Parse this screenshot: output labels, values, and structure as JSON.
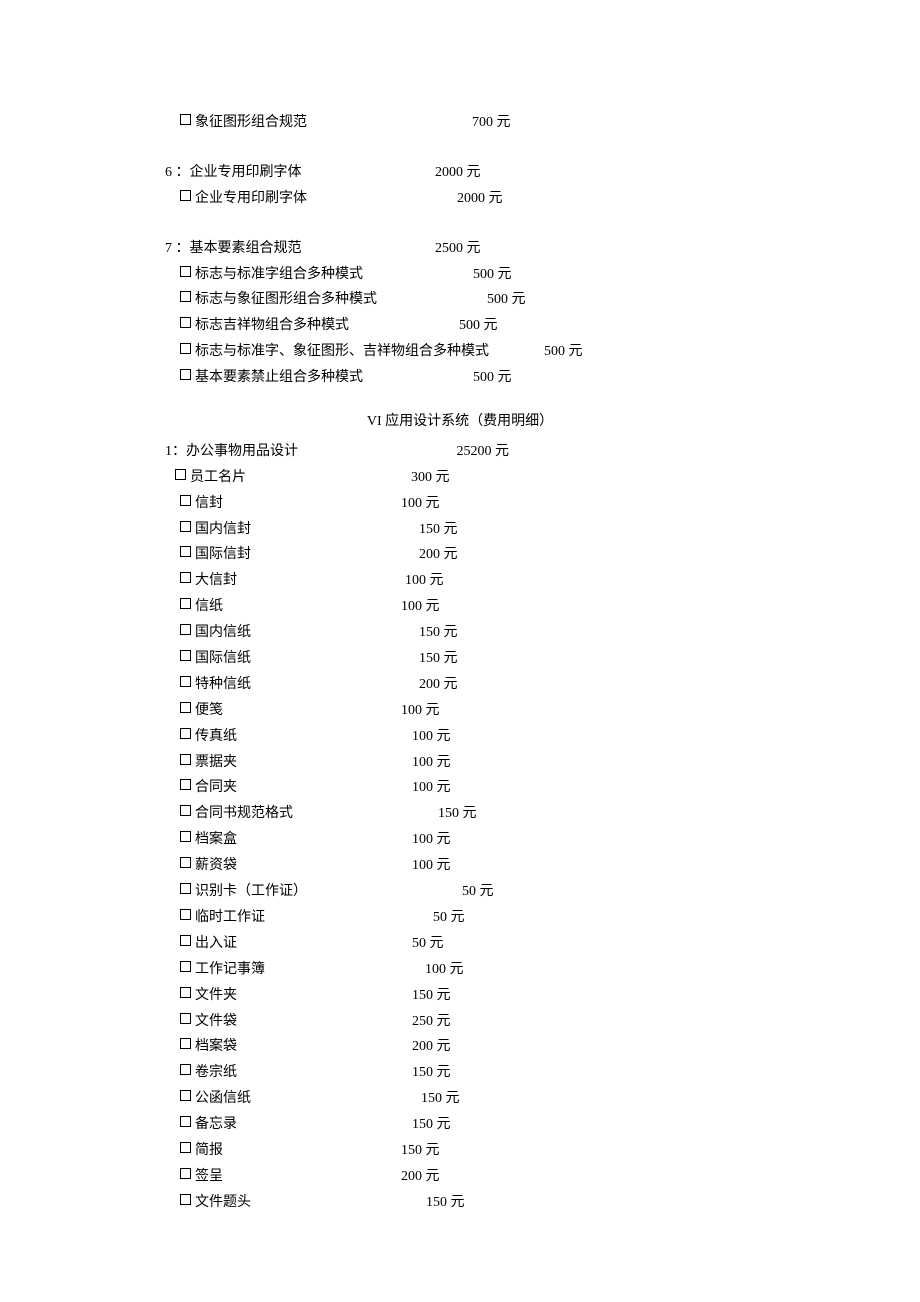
{
  "currency": "元",
  "top_items": [
    {
      "label": "象征图形组合规范",
      "price": "700",
      "indent": 15,
      "gap": 165
    }
  ],
  "section6": {
    "header_label": "6 ：企业专用印刷字体",
    "header_price": "2000",
    "header_gap": 130,
    "items": [
      {
        "label": "企业专用印刷字体",
        "price": "2000",
        "indent": 15,
        "gap": 150
      }
    ]
  },
  "section7": {
    "header_label": "7 ：基本要素组合规范",
    "header_price": "2500",
    "header_gap": 130,
    "items": [
      {
        "label": "标志与标准字组合多种模式",
        "price": "500",
        "indent": 15,
        "gap": 110
      },
      {
        "label": "标志与象征图形组合多种模式",
        "price": "500",
        "indent": 15,
        "gap": 110
      },
      {
        "label": "标志吉祥物组合多种模式",
        "price": "500",
        "indent": 15,
        "gap": 110
      },
      {
        "label": "标志与标准字、象征图形、吉祥物组合多种模式",
        "price": "500",
        "indent": 15,
        "gap": 55
      },
      {
        "label": "基本要素禁止组合多种模式",
        "price": "500",
        "indent": 15,
        "gap": 110
      }
    ]
  },
  "system_title": "VI 应用设计系统（费用明细）",
  "section1": {
    "header_label": "1：办公事物用品设计",
    "header_price": "25200",
    "header_gap": 155,
    "items": [
      {
        "label": "员工名片",
        "price": "300",
        "indent": 10,
        "gap": 165
      },
      {
        "label": "信封",
        "price": "100",
        "indent": 15,
        "gap": 178
      },
      {
        "label": "国内信封",
        "price": "150",
        "indent": 15,
        "gap": 168
      },
      {
        "label": "国际信封",
        "price": "200",
        "indent": 15,
        "gap": 168
      },
      {
        "label": "大信封",
        "price": "100",
        "indent": 15,
        "gap": 168
      },
      {
        "label": "信纸",
        "price": "100",
        "indent": 15,
        "gap": 178
      },
      {
        "label": "国内信纸",
        "price": "150",
        "indent": 15,
        "gap": 168
      },
      {
        "label": "国际信纸",
        "price": "150",
        "indent": 15,
        "gap": 168
      },
      {
        "label": "特种信纸",
        "price": "200",
        "indent": 15,
        "gap": 168
      },
      {
        "label": "便笺",
        "price": "100",
        "indent": 15,
        "gap": 178
      },
      {
        "label": "传真纸",
        "price": "100",
        "indent": 15,
        "gap": 175
      },
      {
        "label": "票据夹",
        "price": "100",
        "indent": 15,
        "gap": 175
      },
      {
        "label": "合同夹",
        "price": "100",
        "indent": 15,
        "gap": 175
      },
      {
        "label": "合同书规范格式",
        "price": "150",
        "indent": 15,
        "gap": 145
      },
      {
        "label": "档案盒",
        "price": "100",
        "indent": 15,
        "gap": 175
      },
      {
        "label": "薪资袋",
        "price": "100",
        "indent": 15,
        "gap": 175
      },
      {
        "label": "识别卡（工作证）",
        "price": "50",
        "indent": 15,
        "gap": 155
      },
      {
        "label": "临时工作证",
        "price": "50",
        "indent": 15,
        "gap": 168
      },
      {
        "label": "出入证",
        "price": "50",
        "indent": 15,
        "gap": 175
      },
      {
        "label": "工作记事簿",
        "price": "100",
        "indent": 15,
        "gap": 160
      },
      {
        "label": "文件夹",
        "price": "150",
        "indent": 15,
        "gap": 175
      },
      {
        "label": "文件袋",
        "price": "250",
        "indent": 15,
        "gap": 175
      },
      {
        "label": "档案袋",
        "price": "200",
        "indent": 15,
        "gap": 175
      },
      {
        "label": "卷宗纸",
        "price": "150",
        "indent": 15,
        "gap": 175
      },
      {
        "label": "公函信纸",
        "price": "150",
        "indent": 15,
        "gap": 170
      },
      {
        "label": "备忘录",
        "price": "150",
        "indent": 15,
        "gap": 175
      },
      {
        "label": "简报",
        "price": "150",
        "indent": 15,
        "gap": 178
      },
      {
        "label": "签呈",
        "price": "200",
        "indent": 15,
        "gap": 178
      },
      {
        "label": "文件题头",
        "price": "150",
        "indent": 15,
        "gap": 175
      }
    ]
  }
}
